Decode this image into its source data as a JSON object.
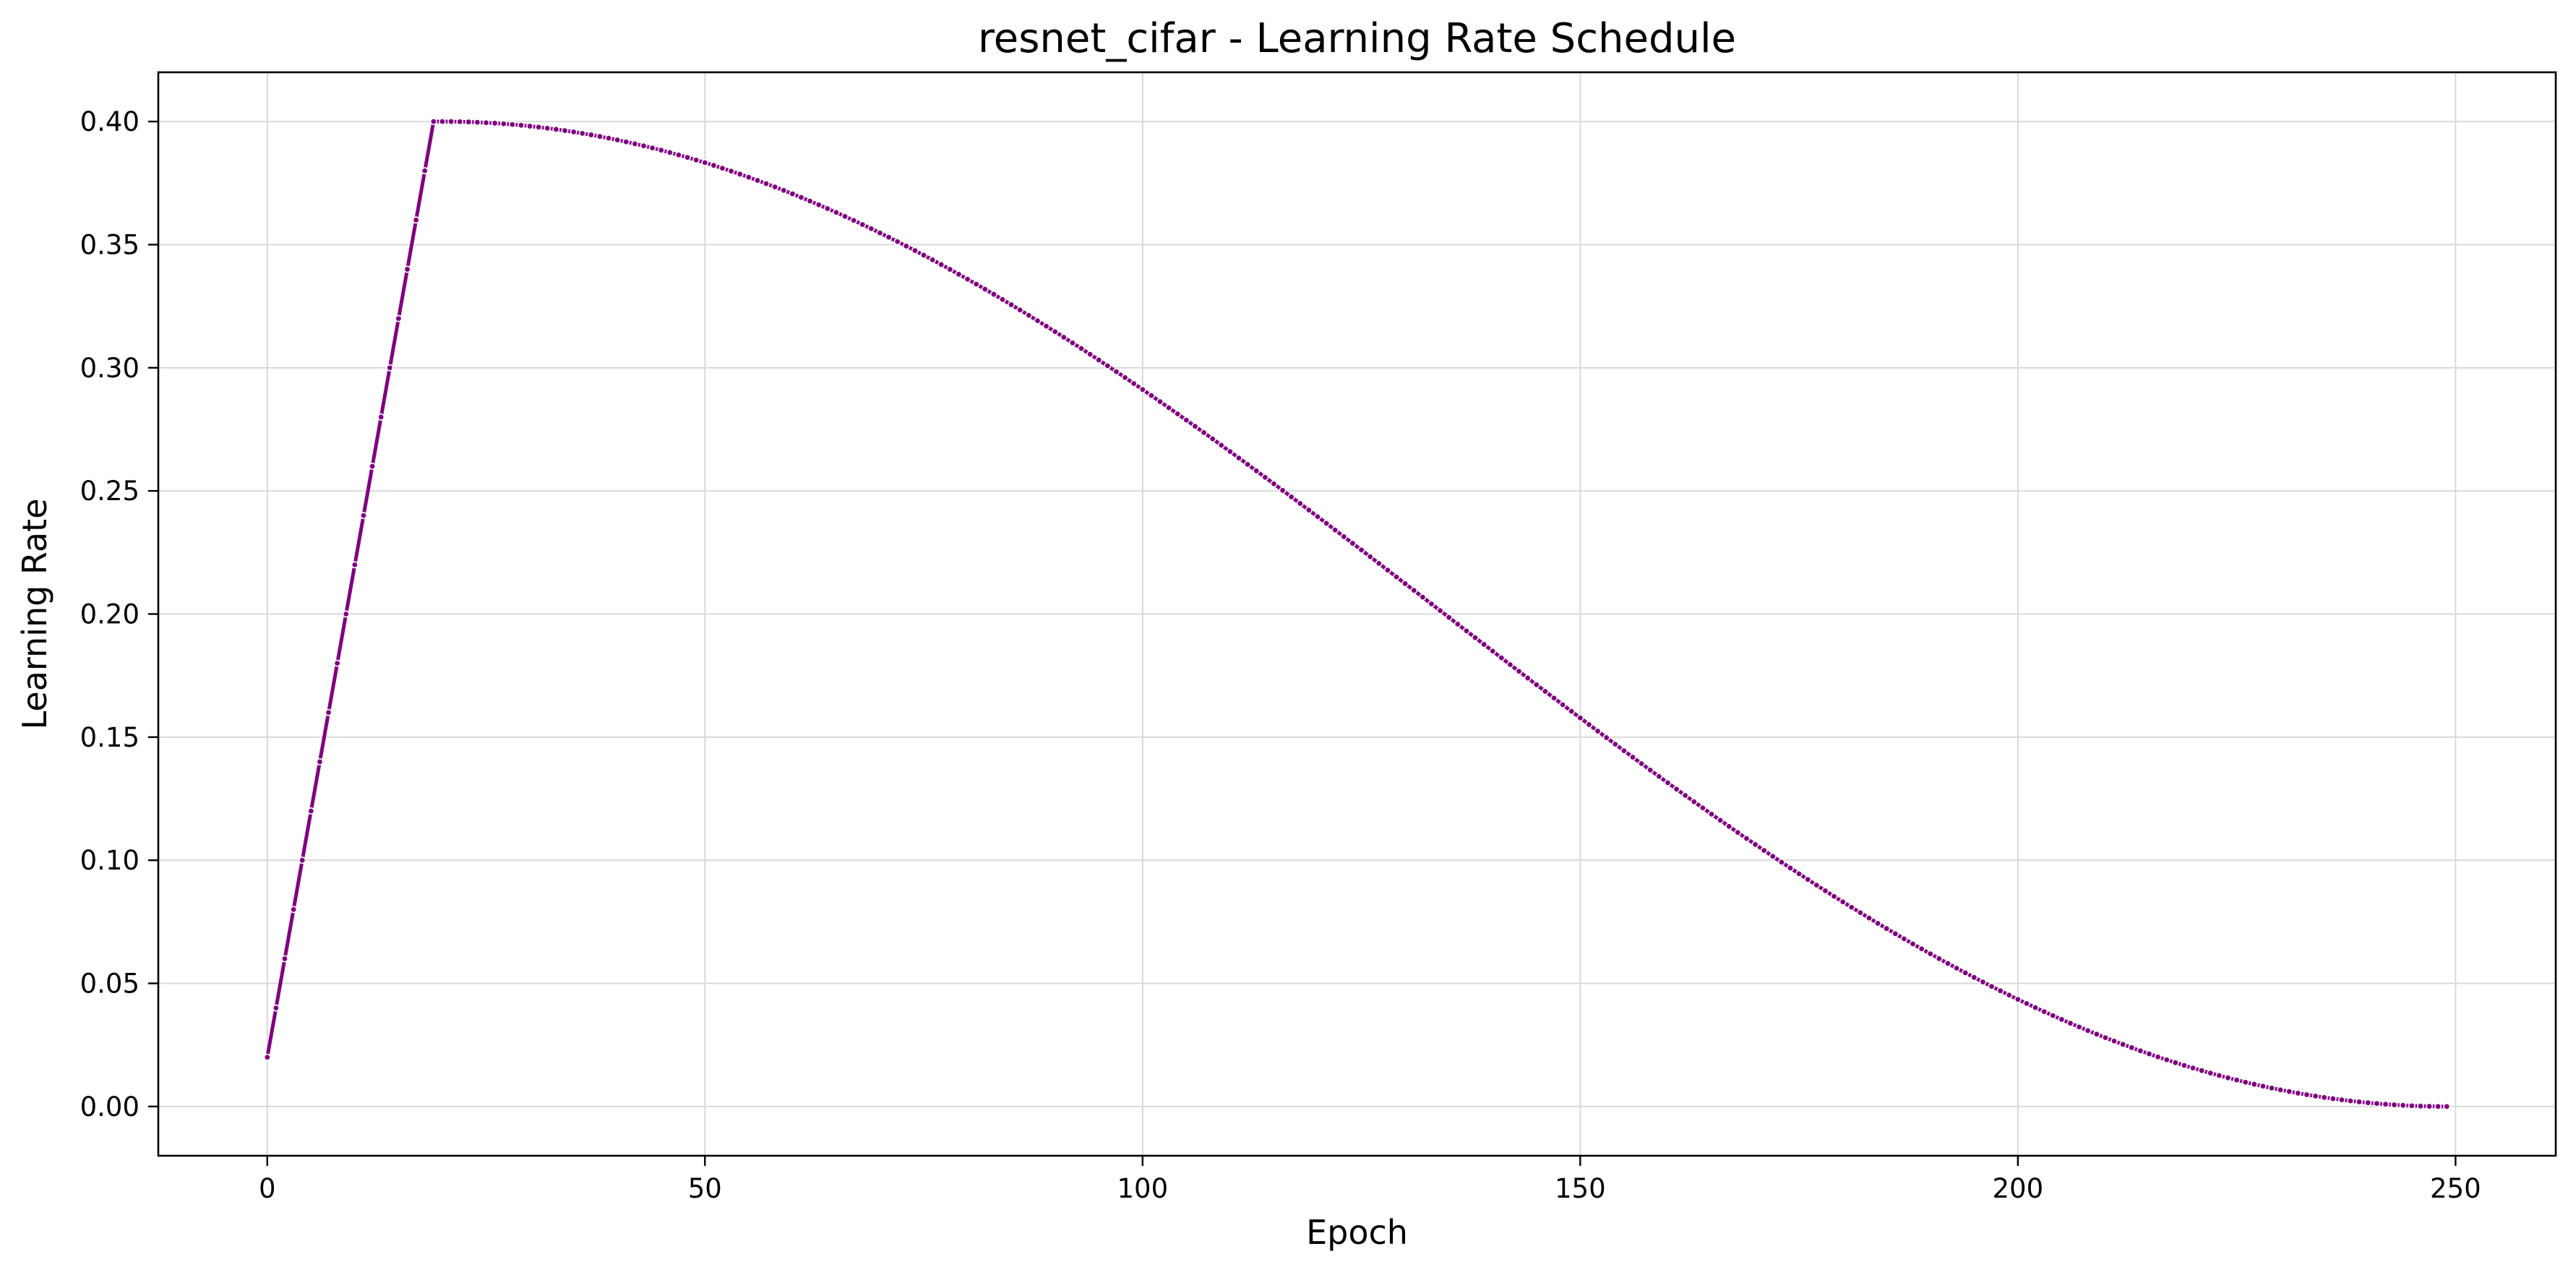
{
  "chart_data": {
    "type": "line",
    "title": "resnet_cifar - Learning Rate Schedule",
    "xlabel": "Epoch",
    "ylabel": "Learning Rate",
    "xlim": [
      -12.45,
      261.45
    ],
    "ylim": [
      -0.02,
      0.42
    ],
    "xticks": [
      0,
      50,
      100,
      150,
      200,
      250
    ],
    "yticks": [
      0.0,
      0.05,
      0.1,
      0.15,
      0.2,
      0.25,
      0.3,
      0.35,
      0.4
    ],
    "ytick_labels": [
      "0.00",
      "0.05",
      "0.10",
      "0.15",
      "0.20",
      "0.25",
      "0.30",
      "0.35",
      "0.40"
    ],
    "xtick_labels": [
      "0",
      "50",
      "100",
      "150",
      "200",
      "250"
    ],
    "grid": true,
    "series": [
      {
        "color": "#800080",
        "marker": "dot",
        "warmup_epochs": 20,
        "total_epochs": 250,
        "peak_lr": 0.4,
        "x": [
          0,
          1,
          2,
          3,
          4,
          5,
          6,
          7,
          8,
          9,
          10,
          11,
          12,
          13,
          14,
          15,
          16,
          17,
          18,
          19,
          20,
          30,
          40,
          50,
          60,
          70,
          80,
          90,
          100,
          110,
          120,
          130,
          140,
          150,
          160,
          170,
          180,
          190,
          200,
          210,
          220,
          230,
          240,
          249
        ],
        "y": [
          0.02,
          0.04,
          0.06,
          0.08,
          0.1,
          0.12,
          0.14,
          0.16,
          0.18,
          0.2,
          0.22,
          0.24,
          0.26,
          0.28,
          0.3,
          0.32,
          0.34,
          0.36,
          0.38,
          0.4,
          0.4,
          0.398,
          0.391,
          0.381,
          0.367,
          0.35,
          0.33,
          0.309,
          0.286,
          0.262,
          0.238,
          0.213,
          0.188,
          0.163,
          0.139,
          0.116,
          0.094,
          0.073,
          0.053,
          0.037,
          0.022,
          0.01,
          0.003,
          0.0
        ]
      }
    ]
  }
}
